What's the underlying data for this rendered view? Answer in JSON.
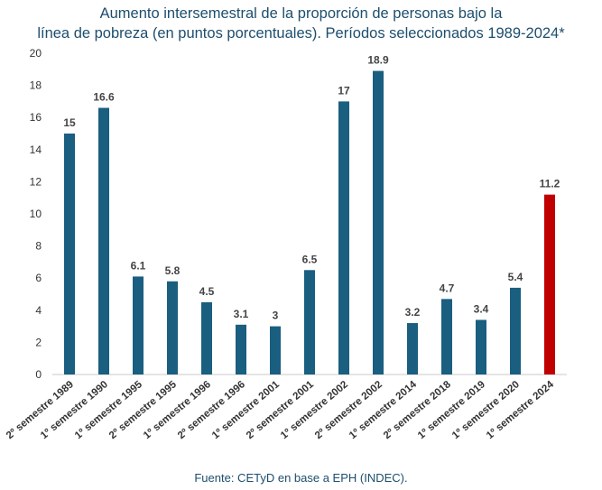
{
  "chart_data": {
    "type": "bar",
    "title_line1": "Aumento intersemestral de la proporción de personas bajo la",
    "title_line2": "línea de pobreza (en puntos porcentuales). Períodos seleccionados 1989-2024*",
    "categories": [
      "2º semestre 1989",
      "1º semestre 1990",
      "1º semestre 1995",
      "2º semestre 1995",
      "1º semestre 1996",
      "2º semestre 1996",
      "1º semestre 2001",
      "2º semestre 2001",
      "1º semestre 2002",
      "2º semestre 2002",
      "1º semestre 2014",
      "2º semestre 2018",
      "1º semestre 2019",
      "1º semestre 2020",
      "1º semestre 2024"
    ],
    "values": [
      15,
      16.6,
      6.1,
      5.8,
      4.5,
      3.1,
      3,
      6.5,
      17,
      18.9,
      3.2,
      4.7,
      3.4,
      5.4,
      11.2
    ],
    "value_labels": [
      "15",
      "16.6",
      "6.1",
      "5.8",
      "4.5",
      "3.1",
      "3",
      "6.5",
      "17",
      "18.9",
      "3.2",
      "4.7",
      "3.4",
      "5.4",
      "11.2"
    ],
    "yticks": [
      "0",
      "2",
      "4",
      "6",
      "8",
      "10",
      "12",
      "14",
      "16",
      "18",
      "20"
    ],
    "ylim": [
      0,
      20
    ],
    "bar_color": "#1a5e80",
    "highlight_color": "#c00000",
    "highlight_index": 14,
    "grid": false,
    "xlabel": "",
    "ylabel": ""
  },
  "source": "Fuente: CETyD en base a EPH (INDEC)."
}
